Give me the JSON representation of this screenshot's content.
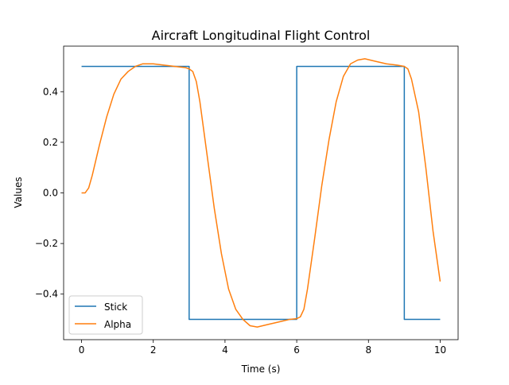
{
  "chart_data": {
    "type": "line",
    "title": "Aircraft Longitudinal Flight Control",
    "xlabel": "Time (s)",
    "ylabel": "Values",
    "xlim": [
      -0.5,
      10.5
    ],
    "ylim": [
      -0.58,
      0.58
    ],
    "x_ticks": [
      0,
      2,
      4,
      6,
      8,
      10
    ],
    "y_ticks": [
      -0.4,
      -0.2,
      0.0,
      0.2,
      0.4
    ],
    "x_tick_labels": [
      "0",
      "2",
      "4",
      "6",
      "8",
      "10"
    ],
    "y_tick_labels": [
      "−0.4",
      "−0.2",
      "0.0",
      "0.2",
      "0.4"
    ],
    "grid": false,
    "legend_position": "lower-left",
    "series": [
      {
        "name": "Stick",
        "color": "#1f77b4",
        "x": [
          0,
          3,
          3,
          6,
          6,
          9,
          9,
          10
        ],
        "y": [
          0.5,
          0.5,
          -0.5,
          -0.5,
          0.5,
          0.5,
          -0.5,
          -0.5
        ]
      },
      {
        "name": "Alpha",
        "color": "#ff7f0e",
        "x": [
          0,
          0.1,
          0.2,
          0.3,
          0.5,
          0.7,
          0.9,
          1.1,
          1.3,
          1.5,
          1.7,
          2.0,
          2.3,
          2.6,
          2.9,
          3.0,
          3.1,
          3.2,
          3.3,
          3.5,
          3.7,
          3.9,
          4.1,
          4.3,
          4.5,
          4.7,
          4.9,
          5.2,
          5.5,
          5.8,
          6.0,
          6.1,
          6.2,
          6.3,
          6.5,
          6.7,
          6.9,
          7.1,
          7.3,
          7.5,
          7.7,
          7.9,
          8.2,
          8.5,
          8.8,
          9.0,
          9.1,
          9.2,
          9.4,
          9.6,
          9.8,
          10.0
        ],
        "y": [
          0.0,
          0.0,
          0.02,
          0.07,
          0.19,
          0.3,
          0.39,
          0.45,
          0.48,
          0.5,
          0.51,
          0.51,
          0.505,
          0.5,
          0.495,
          0.49,
          0.48,
          0.44,
          0.36,
          0.15,
          -0.06,
          -0.24,
          -0.38,
          -0.46,
          -0.5,
          -0.525,
          -0.53,
          -0.52,
          -0.51,
          -0.5,
          -0.497,
          -0.49,
          -0.46,
          -0.38,
          -0.18,
          0.03,
          0.21,
          0.36,
          0.46,
          0.51,
          0.525,
          0.53,
          0.52,
          0.51,
          0.505,
          0.5,
          0.49,
          0.45,
          0.32,
          0.1,
          -0.15,
          -0.35
        ]
      }
    ]
  }
}
